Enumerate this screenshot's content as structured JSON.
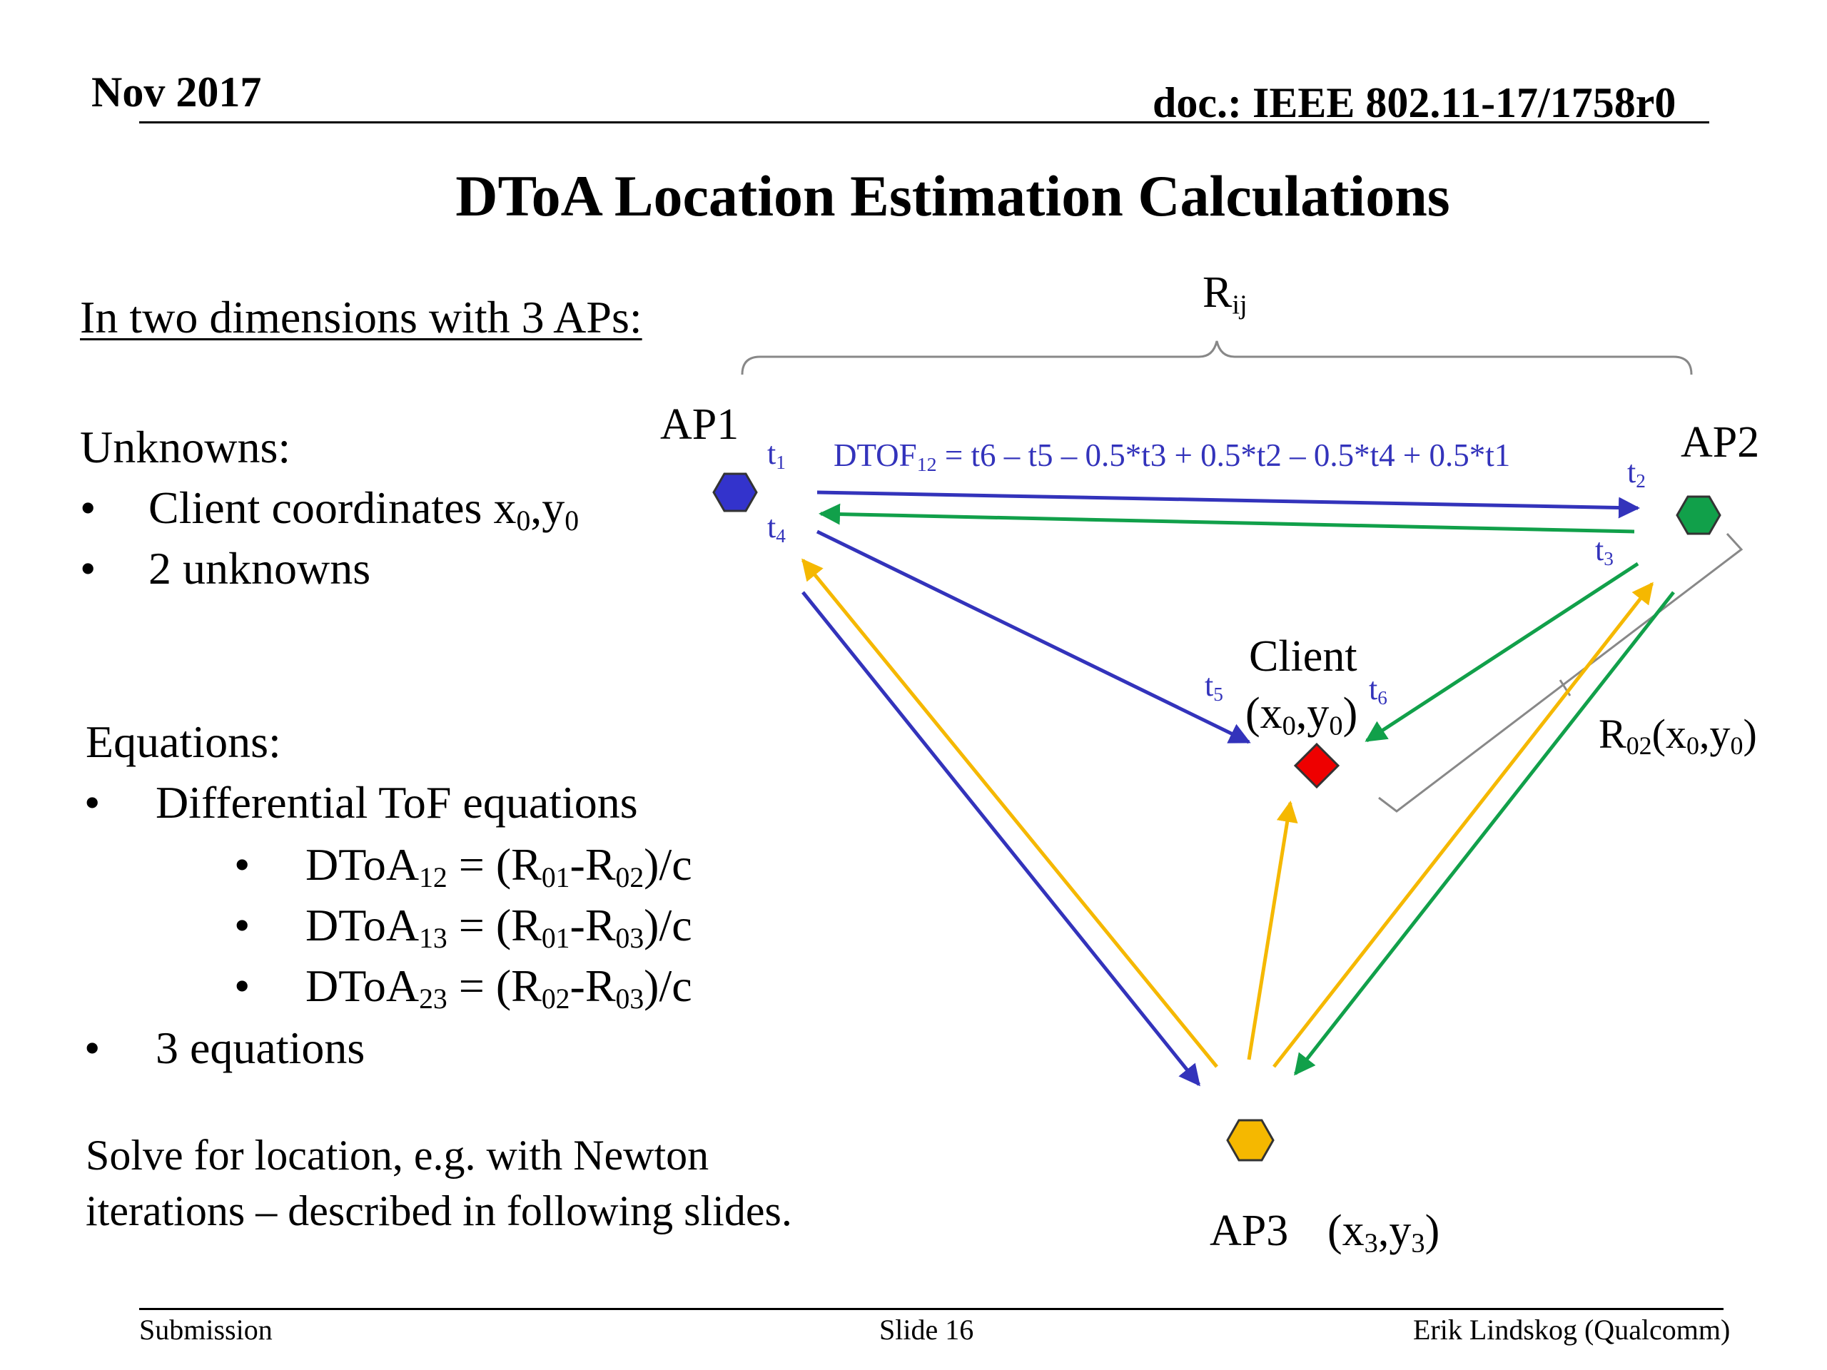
{
  "header": {
    "date": "Nov 2017",
    "doc_id": "doc.: IEEE 802.11-17/1758r0"
  },
  "title": "DToA Location Estimation Calculations",
  "left": {
    "intro": "In two dimensions with 3 APs:",
    "unknowns_heading": "Unknowns:",
    "unknowns": {
      "item1_text": "Client coordinates x",
      "item1_sub1": "0",
      "item1_mid": ",y",
      "item1_sub2": "0",
      "item2": "2 unknowns"
    },
    "equations_heading": "Equations:",
    "equations": {
      "item1": "Differential ToF equations",
      "sub": [
        {
          "lhs": "DToA",
          "lhs_sub": "12",
          "eq": " = (R",
          "a_sub": "01",
          "minus": "-R",
          "b_sub": "02",
          "tail": ")/c"
        },
        {
          "lhs": "DToA",
          "lhs_sub": "13",
          "eq": " = (R",
          "a_sub": "01",
          "minus": "-R",
          "b_sub": "03",
          "tail": ")/c"
        },
        {
          "lhs": "DToA",
          "lhs_sub": "23",
          "eq": " = (R",
          "a_sub": "02",
          "minus": "-R",
          "b_sub": "03",
          "tail": ")/c"
        }
      ],
      "item2": "3 equations"
    },
    "solve_line1": "Solve for location, e.g. with Newton",
    "solve_line2": "iterations – described in following slides.",
    "bullet_char": "•"
  },
  "diagram": {
    "rij": {
      "main": "R",
      "sub": "ij"
    },
    "ap1": "AP1",
    "ap2": "AP2",
    "ap3": "AP3",
    "ap3_coords": {
      "open": "(x",
      "s1": "3",
      "mid": ",y",
      "s2": "3",
      "close": ")"
    },
    "client_label": "Client",
    "client_coords": {
      "open": "(x",
      "s1": "0",
      "mid": ",y",
      "s2": "0",
      "close": ")"
    },
    "r02": {
      "main": "R",
      "sub": "02",
      "rest1": "(x",
      "s1": "0",
      "rest2": ",y",
      "s2": "0",
      "close": ")"
    },
    "dtof": {
      "main": "DTOF",
      "sub": "12",
      "rest": " = t6 – t5 – 0.5*t3 + 0.5*t2 – 0.5*t4 + 0.5*t1"
    },
    "t_labels": [
      {
        "main": "t",
        "sub": "1"
      },
      {
        "main": "t",
        "sub": "2"
      },
      {
        "main": "t",
        "sub": "3"
      },
      {
        "main": "t",
        "sub": "4"
      },
      {
        "main": "t",
        "sub": "5"
      },
      {
        "main": "t",
        "sub": "6"
      }
    ],
    "colors": {
      "ap1": "#3333cc",
      "ap2": "#11a04a",
      "ap3": "#f5b800",
      "client": "#ee0000",
      "blue_arrow": "#3333bb",
      "green_arrow": "#11a04a",
      "yellow_arrow": "#f5b800",
      "bracket": "#888888"
    }
  },
  "footer": {
    "left": "Submission",
    "center": "Slide 16",
    "right": "Erik Lindskog (Qualcomm)"
  }
}
